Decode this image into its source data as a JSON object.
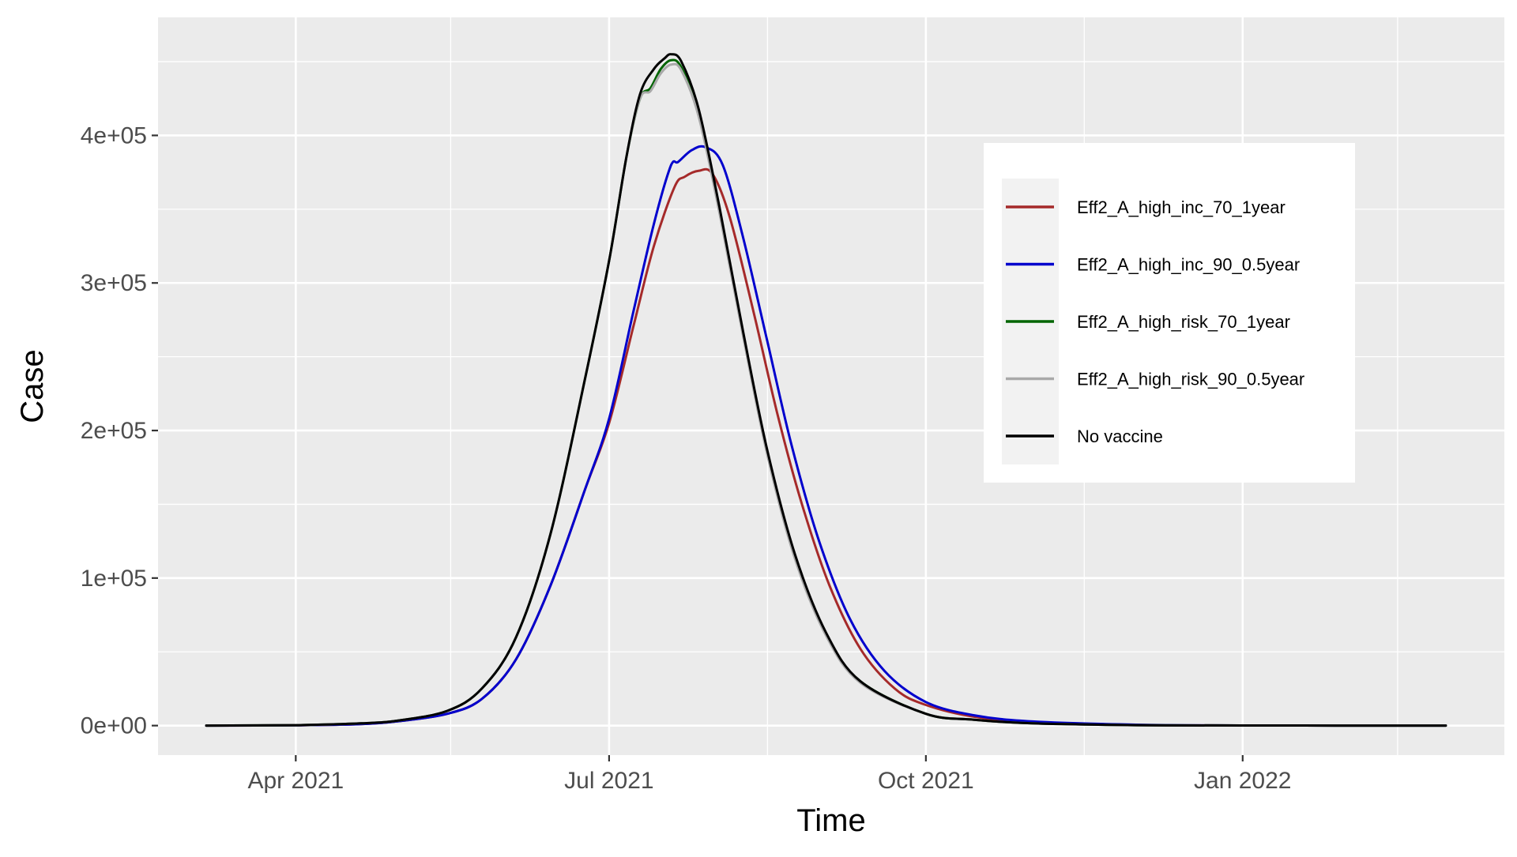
{
  "chart_data": {
    "type": "line",
    "xlabel": "Time",
    "ylabel": "Case",
    "x_range": [
      "2021-02-20",
      "2022-03-18"
    ],
    "y_range": [
      -20000,
      480000
    ],
    "x_ticks": [
      {
        "date": "2021-04-01",
        "label": "Apr 2021"
      },
      {
        "date": "2021-07-01",
        "label": "Jul 2021"
      },
      {
        "date": "2021-10-01",
        "label": "Oct 2021"
      },
      {
        "date": "2022-01-01",
        "label": "Jan 2022"
      }
    ],
    "x_minor_ticks": [
      "2021-02-15",
      "2021-05-16",
      "2021-08-16",
      "2021-11-16",
      "2022-02-15"
    ],
    "y_ticks": [
      {
        "value": 0,
        "label": "0e+00"
      },
      {
        "value": 100000,
        "label": "1e+05"
      },
      {
        "value": 200000,
        "label": "2e+05"
      },
      {
        "value": 300000,
        "label": "3e+05"
      },
      {
        "value": 400000,
        "label": "4e+05"
      }
    ],
    "grid": true,
    "legend_position": "right-inside",
    "series": [
      {
        "name": "Eff2_A_high_inc_70_1year",
        "color": "#a52a2a",
        "points": [
          [
            "2021-03-06",
            0
          ],
          [
            "2021-04-01",
            200
          ],
          [
            "2021-04-20",
            1000
          ],
          [
            "2021-05-01",
            3000
          ],
          [
            "2021-05-15",
            8000
          ],
          [
            "2021-05-25",
            18000
          ],
          [
            "2021-06-04",
            45000
          ],
          [
            "2021-06-14",
            95000
          ],
          [
            "2021-06-24",
            160000
          ],
          [
            "2021-07-01",
            205000
          ],
          [
            "2021-07-08",
            270000
          ],
          [
            "2021-07-14",
            325000
          ],
          [
            "2021-07-20",
            365000
          ],
          [
            "2021-07-23",
            372000
          ],
          [
            "2021-07-27",
            376000
          ],
          [
            "2021-07-31",
            374000
          ],
          [
            "2021-08-05",
            345000
          ],
          [
            "2021-08-12",
            280000
          ],
          [
            "2021-08-19",
            210000
          ],
          [
            "2021-08-26",
            150000
          ],
          [
            "2021-09-03",
            95000
          ],
          [
            "2021-09-12",
            52000
          ],
          [
            "2021-09-22",
            25000
          ],
          [
            "2021-10-01",
            14000
          ],
          [
            "2021-10-15",
            6000
          ],
          [
            "2021-11-01",
            2500
          ],
          [
            "2021-12-01",
            500
          ],
          [
            "2022-01-01",
            100
          ],
          [
            "2022-03-01",
            0
          ]
        ]
      },
      {
        "name": "Eff2_A_high_inc_90_0.5year",
        "color": "#0000cd",
        "points": [
          [
            "2021-03-06",
            0
          ],
          [
            "2021-04-01",
            200
          ],
          [
            "2021-04-20",
            1000
          ],
          [
            "2021-05-01",
            3000
          ],
          [
            "2021-05-15",
            8000
          ],
          [
            "2021-05-25",
            18000
          ],
          [
            "2021-06-04",
            45000
          ],
          [
            "2021-06-14",
            95000
          ],
          [
            "2021-06-24",
            160000
          ],
          [
            "2021-07-01",
            208000
          ],
          [
            "2021-07-08",
            280000
          ],
          [
            "2021-07-14",
            340000
          ],
          [
            "2021-07-19",
            380000
          ],
          [
            "2021-07-21",
            382000
          ],
          [
            "2021-07-25",
            390000
          ],
          [
            "2021-07-29",
            392000
          ],
          [
            "2021-08-03",
            380000
          ],
          [
            "2021-08-09",
            330000
          ],
          [
            "2021-08-16",
            260000
          ],
          [
            "2021-08-23",
            190000
          ],
          [
            "2021-08-31",
            125000
          ],
          [
            "2021-09-09",
            72000
          ],
          [
            "2021-09-19",
            37000
          ],
          [
            "2021-10-01",
            16000
          ],
          [
            "2021-10-15",
            7000
          ],
          [
            "2021-11-01",
            2800
          ],
          [
            "2021-12-01",
            600
          ],
          [
            "2022-01-01",
            100
          ],
          [
            "2022-03-01",
            0
          ]
        ]
      },
      {
        "name": "Eff2_A_high_risk_70_1year",
        "color": "#006400",
        "points": [
          [
            "2021-03-06",
            0
          ],
          [
            "2021-04-01",
            300
          ],
          [
            "2021-04-20",
            1500
          ],
          [
            "2021-05-01",
            3500
          ],
          [
            "2021-05-15",
            10000
          ],
          [
            "2021-05-25",
            25000
          ],
          [
            "2021-06-04",
            60000
          ],
          [
            "2021-06-14",
            130000
          ],
          [
            "2021-06-24",
            235000
          ],
          [
            "2021-07-01",
            315000
          ],
          [
            "2021-07-06",
            385000
          ],
          [
            "2021-07-10",
            425000
          ],
          [
            "2021-07-13",
            432000
          ],
          [
            "2021-07-16",
            445000
          ],
          [
            "2021-07-19",
            451000
          ],
          [
            "2021-07-22",
            446000
          ],
          [
            "2021-07-27",
            415000
          ],
          [
            "2021-08-02",
            350000
          ],
          [
            "2021-08-09",
            265000
          ],
          [
            "2021-08-16",
            185000
          ],
          [
            "2021-08-24",
            115000
          ],
          [
            "2021-09-02",
            62000
          ],
          [
            "2021-09-12",
            30000
          ],
          [
            "2021-10-01",
            8000
          ],
          [
            "2021-10-15",
            4000
          ],
          [
            "2021-11-01",
            1500
          ],
          [
            "2021-12-01",
            300
          ],
          [
            "2022-01-01",
            50
          ],
          [
            "2022-03-01",
            0
          ]
        ]
      },
      {
        "name": "Eff2_A_high_risk_90_0.5year",
        "color": "#a9a9a9",
        "points": [
          [
            "2021-03-06",
            0
          ],
          [
            "2021-04-01",
            300
          ],
          [
            "2021-04-20",
            1500
          ],
          [
            "2021-05-01",
            3500
          ],
          [
            "2021-05-15",
            10000
          ],
          [
            "2021-05-25",
            25000
          ],
          [
            "2021-06-04",
            60000
          ],
          [
            "2021-06-14",
            130000
          ],
          [
            "2021-06-24",
            235000
          ],
          [
            "2021-07-01",
            315000
          ],
          [
            "2021-07-06",
            385000
          ],
          [
            "2021-07-10",
            425000
          ],
          [
            "2021-07-13",
            430000
          ],
          [
            "2021-07-16",
            442000
          ],
          [
            "2021-07-19",
            448000
          ],
          [
            "2021-07-22",
            444000
          ],
          [
            "2021-07-27",
            413000
          ],
          [
            "2021-08-02",
            348000
          ],
          [
            "2021-08-09",
            263000
          ],
          [
            "2021-08-16",
            183000
          ],
          [
            "2021-08-24",
            113000
          ],
          [
            "2021-09-02",
            61000
          ],
          [
            "2021-09-12",
            29000
          ],
          [
            "2021-10-01",
            8000
          ],
          [
            "2021-10-15",
            4000
          ],
          [
            "2021-11-01",
            1500
          ],
          [
            "2021-12-01",
            300
          ],
          [
            "2022-01-01",
            50
          ],
          [
            "2022-03-01",
            0
          ]
        ]
      },
      {
        "name": "No vaccine",
        "color": "#000000",
        "points": [
          [
            "2021-03-06",
            0
          ],
          [
            "2021-04-01",
            300
          ],
          [
            "2021-04-20",
            1500
          ],
          [
            "2021-05-01",
            3500
          ],
          [
            "2021-05-15",
            10000
          ],
          [
            "2021-05-25",
            25000
          ],
          [
            "2021-06-04",
            60000
          ],
          [
            "2021-06-14",
            130000
          ],
          [
            "2021-06-24",
            235000
          ],
          [
            "2021-07-01",
            315000
          ],
          [
            "2021-07-06",
            385000
          ],
          [
            "2021-07-10",
            428000
          ],
          [
            "2021-07-14",
            445000
          ],
          [
            "2021-07-17",
            452000
          ],
          [
            "2021-07-19",
            455000
          ],
          [
            "2021-07-22",
            450000
          ],
          [
            "2021-07-27",
            418000
          ],
          [
            "2021-08-02",
            352000
          ],
          [
            "2021-08-09",
            266000
          ],
          [
            "2021-08-16",
            186000
          ],
          [
            "2021-08-24",
            116000
          ],
          [
            "2021-09-02",
            63000
          ],
          [
            "2021-09-12",
            30000
          ],
          [
            "2021-10-01",
            8000
          ],
          [
            "2021-10-15",
            4000
          ],
          [
            "2021-11-01",
            1500
          ],
          [
            "2021-12-01",
            300
          ],
          [
            "2022-01-01",
            50
          ],
          [
            "2022-03-01",
            0
          ]
        ]
      }
    ]
  }
}
